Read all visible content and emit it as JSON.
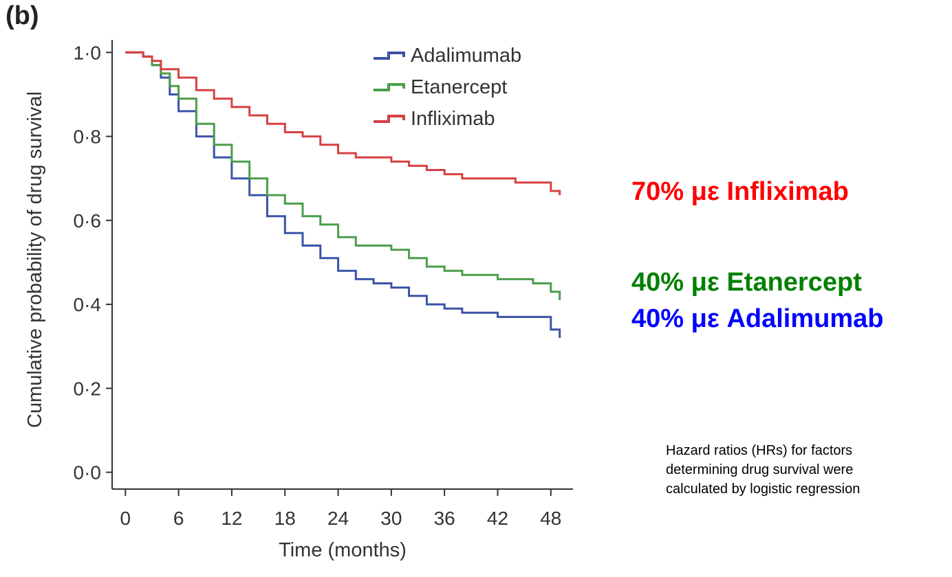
{
  "panel_label": "(b)",
  "chart_data": {
    "type": "line",
    "subtype": "step",
    "title": "",
    "xlabel": "Time (months)",
    "ylabel": "Cumulative probability of drug survival",
    "xlim": [
      -1.5,
      50.5
    ],
    "ylim": [
      -0.04,
      1.03
    ],
    "x_ticks": [
      0,
      6,
      12,
      18,
      24,
      30,
      36,
      42,
      48
    ],
    "x_tick_labels": [
      "0",
      "6",
      "12",
      "18",
      "24",
      "30",
      "36",
      "42",
      "48"
    ],
    "y_ticks": [
      0,
      0.2,
      0.4,
      0.6,
      0.8,
      1.0
    ],
    "y_tick_labels": [
      "0·0",
      "0·2",
      "0·4",
      "0·6",
      "0·8",
      "1·0"
    ],
    "grid": false,
    "legend_position": "top-center",
    "series": [
      {
        "name": "Adalimumab",
        "color": "#3b53a8",
        "x": [
          0,
          1,
          2,
          3,
          4,
          5,
          6,
          8,
          10,
          12,
          14,
          16,
          18,
          20,
          22,
          24,
          26,
          28,
          30,
          32,
          34,
          36,
          38,
          40,
          42,
          44,
          46,
          48,
          49
        ],
        "y": [
          1.0,
          1.0,
          0.99,
          0.97,
          0.94,
          0.9,
          0.86,
          0.8,
          0.75,
          0.7,
          0.66,
          0.61,
          0.57,
          0.54,
          0.51,
          0.48,
          0.46,
          0.45,
          0.44,
          0.42,
          0.4,
          0.39,
          0.38,
          0.38,
          0.37,
          0.37,
          0.37,
          0.34,
          0.32
        ]
      },
      {
        "name": "Etanercept",
        "color": "#4a9e4a",
        "x": [
          0,
          1,
          2,
          3,
          4,
          5,
          6,
          8,
          10,
          12,
          14,
          16,
          18,
          20,
          22,
          24,
          26,
          28,
          30,
          32,
          34,
          36,
          38,
          40,
          42,
          44,
          46,
          48,
          49
        ],
        "y": [
          1.0,
          1.0,
          0.99,
          0.97,
          0.95,
          0.92,
          0.89,
          0.83,
          0.78,
          0.74,
          0.7,
          0.66,
          0.64,
          0.61,
          0.59,
          0.56,
          0.54,
          0.54,
          0.53,
          0.51,
          0.49,
          0.48,
          0.47,
          0.47,
          0.46,
          0.46,
          0.45,
          0.43,
          0.41
        ]
      },
      {
        "name": "Infliximab",
        "color": "#d84040",
        "x": [
          0,
          1,
          2,
          3,
          4,
          6,
          8,
          10,
          12,
          14,
          16,
          18,
          20,
          22,
          24,
          26,
          28,
          30,
          32,
          34,
          36,
          38,
          40,
          42,
          44,
          46,
          48,
          49
        ],
        "y": [
          1.0,
          1.0,
          0.99,
          0.98,
          0.96,
          0.94,
          0.91,
          0.89,
          0.87,
          0.85,
          0.83,
          0.81,
          0.8,
          0.78,
          0.76,
          0.75,
          0.75,
          0.74,
          0.73,
          0.72,
          0.71,
          0.7,
          0.7,
          0.7,
          0.69,
          0.69,
          0.67,
          0.66
        ]
      }
    ]
  },
  "callouts": {
    "infliximab": {
      "text": "70% με Infliximab",
      "color": "#ff0000"
    },
    "etanercept": {
      "text": "40% με Etanercept",
      "color": "#008000"
    },
    "adalimumab": {
      "text": "40% με Adalimumab",
      "color": "#0000ff"
    }
  },
  "footnote": {
    "lines": [
      "Hazard ratios (HRs) for factors",
      "determining drug survival were",
      "calculated by logistic regression"
    ]
  }
}
